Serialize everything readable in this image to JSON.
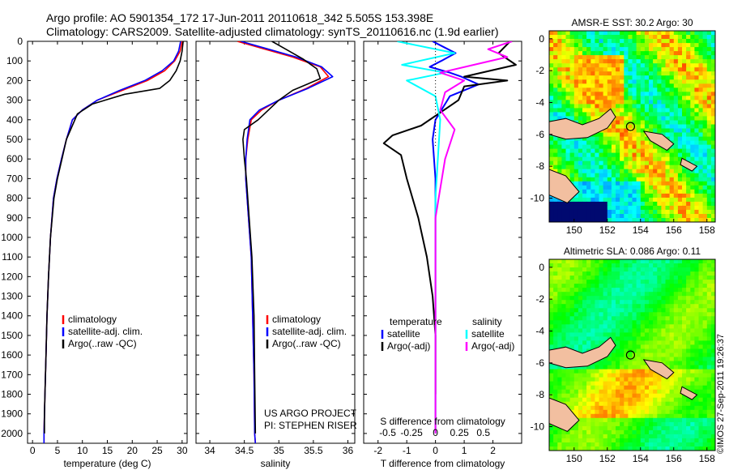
{
  "header": {
    "line1": "Argo profile: AO 5901354_172 17-Jun-2011 20110618_342 5.505S 153.398E",
    "line2": "Climatology: CARS2009. Satellite-adjusted climatology: synTS_20110616.nc (1.9d earlier)"
  },
  "colors": {
    "climatology": "#ff0000",
    "satellite": "#0000ff",
    "argo": "#000000",
    "salinity_satellite": "#00ffff",
    "salinity_argo": "#ff00ff",
    "land": "#f2bfa0"
  },
  "chart_data": [
    {
      "type": "line",
      "id": "temperature",
      "xlabel": "temperature (deg C)",
      "ylabel": "",
      "xlim": [
        -1,
        31
      ],
      "ylim": [
        2050,
        0
      ],
      "xticks": [
        "0",
        "5",
        "10",
        "15",
        "20",
        "25",
        "30"
      ],
      "yticks": [
        "0",
        "100",
        "200",
        "300",
        "400",
        "500",
        "600",
        "700",
        "800",
        "900",
        "1000",
        "1100",
        "1200",
        "1300",
        "1400",
        "1500",
        "1600",
        "1700",
        "1800",
        "1900",
        "2000"
      ],
      "legend": [
        "climatology",
        "satellite-adj. clim.",
        "Argo(..raw -QC)"
      ],
      "series": [
        {
          "name": "climatology",
          "x": [
            30.0,
            29.6,
            28.5,
            26.5,
            23.0,
            18.0,
            13.0,
            10.0,
            8.0,
            6.8,
            5.8,
            4.9,
            4.2,
            3.6,
            3.2,
            2.9,
            2.7,
            2.5,
            2.4,
            2.3,
            2.3
          ],
          "y": [
            0,
            50,
            100,
            150,
            200,
            250,
            300,
            350,
            400,
            500,
            600,
            700,
            800,
            1000,
            1200,
            1400,
            1600,
            1800,
            1900,
            2000,
            2050
          ]
        },
        {
          "name": "satellite-adj. clim.",
          "x": [
            29.7,
            29.3,
            28.3,
            26.0,
            22.5,
            17.5,
            13.0,
            10.0,
            8.0,
            6.8,
            5.8,
            4.9,
            4.2,
            3.6,
            3.2,
            2.9,
            2.7,
            2.5,
            2.4,
            2.3,
            2.3
          ],
          "y": [
            0,
            50,
            100,
            150,
            200,
            250,
            300,
            350,
            400,
            500,
            600,
            700,
            800,
            1000,
            1200,
            1400,
            1600,
            1800,
            1900,
            2000,
            2050
          ]
        },
        {
          "name": "Argo(..raw -QC)",
          "x": [
            30.2,
            30.0,
            29.6,
            28.8,
            27.5,
            25.5,
            18.5,
            12.0,
            9.0,
            6.8,
            5.9,
            5.0,
            4.3,
            3.6,
            3.2,
            2.9,
            2.7,
            2.5,
            2.4,
            2.4
          ],
          "y": [
            0,
            50,
            100,
            150,
            200,
            240,
            270,
            320,
            370,
            500,
            600,
            700,
            800,
            1000,
            1200,
            1400,
            1600,
            1800,
            1900,
            2000
          ]
        }
      ]
    },
    {
      "type": "line",
      "id": "salinity",
      "xlabel": "salinity",
      "ylabel": "",
      "xlim": [
        33.8,
        36.1
      ],
      "ylim": [
        2050,
        0
      ],
      "xticks": [
        "34",
        "34.5",
        "35",
        "35.5",
        "36"
      ],
      "legend": [
        "climatology",
        "satellite-adj. clim.",
        "Argo(..raw -QC)"
      ],
      "series": [
        {
          "name": "climatology",
          "x": [
            34.4,
            34.8,
            35.2,
            35.6,
            35.72,
            35.4,
            35.0,
            34.75,
            34.6,
            34.55,
            34.52,
            34.52,
            34.56,
            34.6,
            34.62,
            34.64,
            34.65,
            34.66
          ],
          "y": [
            0,
            40,
            80,
            130,
            180,
            240,
            300,
            350,
            400,
            500,
            600,
            700,
            900,
            1100,
            1400,
            1700,
            2000,
            2050
          ]
        },
        {
          "name": "satellite-adj. clim.",
          "x": [
            34.45,
            34.85,
            35.25,
            35.62,
            35.78,
            35.42,
            35.0,
            34.72,
            34.58,
            34.54,
            34.52,
            34.52,
            34.56,
            34.6,
            34.62,
            34.64,
            34.65,
            34.66
          ],
          "y": [
            0,
            40,
            80,
            130,
            180,
            240,
            300,
            350,
            400,
            500,
            600,
            700,
            900,
            1100,
            1400,
            1700,
            2000,
            2050
          ]
        },
        {
          "name": "Argo(..raw -QC)",
          "x": [
            34.9,
            35.1,
            35.35,
            35.55,
            35.6,
            35.2,
            35.0,
            34.7,
            34.5,
            34.48,
            34.5,
            34.53,
            34.57,
            34.61,
            34.64,
            34.65,
            34.66
          ],
          "y": [
            0,
            40,
            90,
            140,
            190,
            250,
            300,
            400,
            450,
            500,
            600,
            700,
            900,
            1100,
            1400,
            1700,
            2000
          ]
        }
      ]
    },
    {
      "type": "line",
      "id": "difference",
      "xlabel": "T difference from climatology",
      "xlabel_top": "S difference from climatology",
      "xlim_T": [
        -2.5,
        3.0
      ],
      "xticks_T": [
        "-2",
        "-1",
        "0",
        "1",
        "2"
      ],
      "xticks_S": [
        "-0.5",
        "-0.25",
        "0",
        "0.25",
        "0.5"
      ],
      "ylim": [
        2050,
        0
      ],
      "legend_titles": [
        "temperature",
        "salinity"
      ],
      "legend": [
        "satellite",
        "Argo(-adj)",
        "satellite",
        "Argo(-adj)"
      ],
      "series": [
        {
          "name": "satellite",
          "variable": "temperature",
          "x": [
            -0.1,
            0.3,
            0.7,
            0.2,
            -0.2,
            0.5,
            0.9,
            1.5,
            0.5,
            0.0,
            -0.1,
            0.0,
            0.0,
            0.0,
            0.0,
            0.0
          ],
          "y": [
            0,
            30,
            60,
            100,
            130,
            160,
            180,
            220,
            280,
            400,
            500,
            700,
            1000,
            1400,
            1800,
            2000
          ]
        },
        {
          "name": "Argo(-adj)",
          "variable": "temperature",
          "x": [
            2.6,
            2.2,
            2.8,
            1.0,
            2.5,
            1.0,
            0.8,
            0.3,
            -0.5,
            -1.5,
            -1.8,
            -1.2,
            -1.0,
            -0.6,
            -0.3,
            -0.1,
            0.0,
            0.0
          ],
          "y": [
            0,
            60,
            120,
            180,
            200,
            230,
            300,
            350,
            430,
            480,
            520,
            580,
            700,
            900,
            1100,
            1300,
            1500,
            1800
          ]
        },
        {
          "name": "satellite",
          "variable": "salinity",
          "x": [
            -0.4,
            0.2,
            -0.35,
            0.1,
            -0.3,
            0.0,
            0.05,
            0.0,
            0.0,
            0.0
          ],
          "y": [
            0,
            60,
            120,
            160,
            200,
            280,
            400,
            800,
            1400,
            2000
          ]
        },
        {
          "name": "Argo(-adj)",
          "variable": "salinity",
          "x": [
            0.8,
            0.55,
            0.75,
            0.4,
            0.05,
            0.3,
            0.1,
            0.05,
            0.2,
            0.1,
            0.0,
            0.0,
            0.0
          ],
          "y": [
            0,
            40,
            80,
            120,
            160,
            200,
            260,
            350,
            450,
            600,
            900,
            1400,
            2000
          ]
        }
      ]
    },
    {
      "type": "heatmap",
      "id": "sst-map",
      "title": "AMSR-E SST: 30.2 Argo: 30",
      "xlim": [
        148.5,
        158.5
      ],
      "ylim": [
        -11.5,
        0.5
      ],
      "xticks": [
        "150",
        "152",
        "154",
        "156",
        "158"
      ],
      "yticks": [
        "0",
        "-2",
        "-4",
        "-6",
        "-8",
        "-10"
      ],
      "marker": {
        "lon": 153.398,
        "lat": -5.505
      }
    },
    {
      "type": "heatmap",
      "id": "sla-map",
      "title": "Altimetric SLA: 0.086 Argo: 0.11",
      "xlim": [
        148.5,
        158.5
      ],
      "ylim": [
        -11.5,
        0.5
      ],
      "xticks": [
        "150",
        "152",
        "154",
        "156",
        "158"
      ],
      "yticks": [
        "0",
        "-2",
        "-4",
        "-6",
        "-8",
        "-10"
      ],
      "marker": {
        "lon": 153.398,
        "lat": -5.505
      }
    }
  ],
  "annotations": {
    "project": "US ARGO PROJECT",
    "pi": "PI: STEPHEN RISER",
    "credit": "©IMOS 27-Sep-2011 19:26:37"
  }
}
